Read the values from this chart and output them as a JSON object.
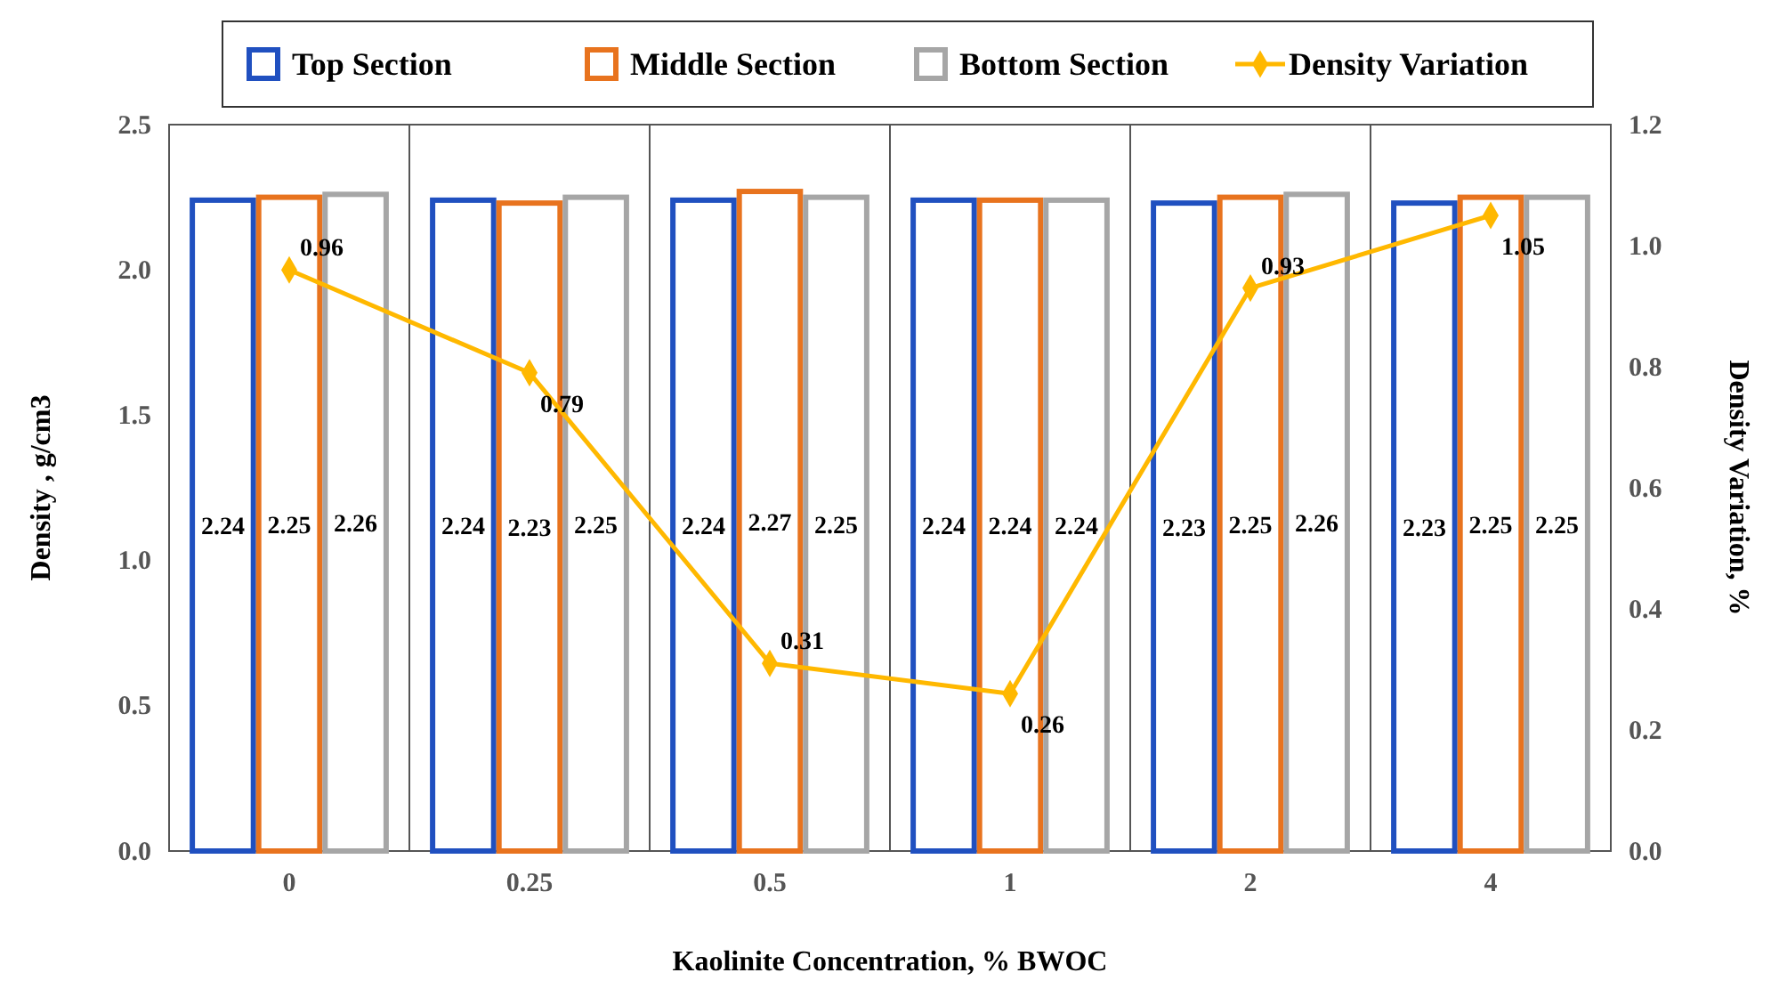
{
  "chart_data": {
    "type": "bar",
    "xlabel": "Kaolinite Concentration, % BWOC",
    "ylabel": "Density , g/cm3",
    "y2label": "Density Variation, %",
    "categories": [
      "0",
      "0.25",
      "0.5",
      "1",
      "2",
      "4"
    ],
    "series": [
      {
        "name": "Top Section",
        "color": "#2050c0",
        "values": [
          2.24,
          2.24,
          2.24,
          2.24,
          2.23,
          2.23
        ]
      },
      {
        "name": "Middle Section",
        "color": "#e8731e",
        "values": [
          2.25,
          2.23,
          2.27,
          2.24,
          2.25,
          2.25
        ]
      },
      {
        "name": "Bottom Section",
        "color": "#a6a6a6",
        "values": [
          2.26,
          2.25,
          2.25,
          2.24,
          2.26,
          2.25
        ]
      },
      {
        "name": "Density Variation",
        "type": "line",
        "axis": "y2",
        "color": "#ffb800",
        "marker": "diamond",
        "values": [
          0.96,
          0.79,
          0.31,
          0.26,
          0.93,
          1.05
        ]
      }
    ],
    "ylim": [
      0,
      2.5
    ],
    "yticks": [
      {
        "value": 0,
        "label": "0.0"
      },
      {
        "value": 0.5,
        "label": "0.5"
      },
      {
        "value": 1,
        "label": "1.0"
      },
      {
        "value": 1.5,
        "label": "1.5"
      },
      {
        "value": 2,
        "label": "2.0"
      },
      {
        "value": 2.5,
        "label": "2.5"
      }
    ],
    "y2lim": [
      0,
      1.2
    ],
    "y2ticks": [
      {
        "value": 0,
        "label": "0.0"
      },
      {
        "value": 0.2,
        "label": "0.2"
      },
      {
        "value": 0.4,
        "label": "0.4"
      },
      {
        "value": 0.6,
        "label": "0.6"
      },
      {
        "value": 0.8,
        "label": "0.8"
      },
      {
        "value": 1,
        "label": "1.0"
      },
      {
        "value": 1.2,
        "label": "1.2"
      }
    ],
    "grid": "x",
    "legend": "top",
    "data_labels": true
  }
}
